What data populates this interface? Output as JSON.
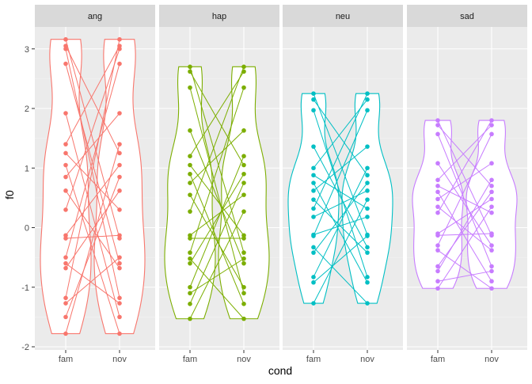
{
  "chart_data": {
    "type": "violin",
    "xlabel": "cond",
    "ylabel": "f0",
    "ylim": [
      -2.05,
      3.35
    ],
    "y_ticks": [
      -2,
      -1,
      0,
      1,
      2,
      3
    ],
    "y_tick_labels": [
      "-2",
      "-1",
      "0",
      "1",
      "2",
      "3"
    ],
    "categories": [
      "fam",
      "nov"
    ],
    "grid": true,
    "panel_background": "#ebebeb",
    "strip_background": "#d9d9d9",
    "panels": [
      {
        "name": "ang",
        "color": "#F8766D",
        "range": [
          -1.78,
          3.16
        ],
        "fam": [
          3.16,
          3.05,
          3.0,
          2.75,
          1.92,
          1.4,
          1.25,
          1.05,
          0.85,
          0.62,
          0.3,
          -0.13,
          -0.18,
          -0.5,
          -0.6,
          -0.68,
          -1.18,
          -1.27,
          -1.5,
          -1.78
        ],
        "nov": [
          3.16,
          3.05,
          3.0,
          2.75,
          1.92,
          1.4,
          1.25,
          1.05,
          0.85,
          0.62,
          0.3,
          -0.13,
          -0.18,
          -0.5,
          -0.6,
          -0.68,
          -1.18,
          -1.27,
          -1.5,
          -1.78
        ],
        "pairs": [
          [
            0,
            12
          ],
          [
            1,
            6
          ],
          [
            2,
            16
          ],
          [
            3,
            14
          ],
          [
            4,
            18
          ],
          [
            5,
            1
          ],
          [
            6,
            10
          ],
          [
            7,
            19
          ],
          [
            8,
            4
          ],
          [
            9,
            15
          ],
          [
            10,
            2
          ],
          [
            11,
            7
          ],
          [
            12,
            11
          ],
          [
            13,
            3
          ],
          [
            14,
            17
          ],
          [
            15,
            9
          ],
          [
            16,
            0
          ],
          [
            17,
            13
          ],
          [
            18,
            8
          ],
          [
            19,
            5
          ]
        ]
      },
      {
        "name": "hap",
        "color": "#7CAE00",
        "range": [
          -1.53,
          2.7
        ],
        "fam": [
          2.7,
          2.62,
          2.35,
          1.63,
          1.2,
          1.05,
          0.9,
          0.75,
          0.55,
          0.27,
          -0.13,
          -0.18,
          -0.42,
          -0.52,
          -0.6,
          -1.0,
          -1.1,
          -1.28,
          -1.53
        ],
        "nov": [
          2.7,
          2.62,
          2.35,
          1.63,
          1.2,
          1.05,
          0.9,
          0.75,
          0.55,
          0.27,
          -0.13,
          -0.18,
          -0.42,
          -0.52,
          -0.6,
          -1.0,
          -1.1,
          -1.28,
          -1.53
        ],
        "pairs": [
          [
            0,
            12
          ],
          [
            1,
            5
          ],
          [
            2,
            16
          ],
          [
            3,
            14
          ],
          [
            4,
            1
          ],
          [
            5,
            10
          ],
          [
            6,
            17
          ],
          [
            7,
            3
          ],
          [
            8,
            15
          ],
          [
            9,
            0
          ],
          [
            10,
            8
          ],
          [
            11,
            11
          ],
          [
            12,
            2
          ],
          [
            13,
            18
          ],
          [
            14,
            6
          ],
          [
            15,
            4
          ],
          [
            16,
            13
          ],
          [
            17,
            7
          ],
          [
            18,
            9
          ]
        ]
      },
      {
        "name": "neu",
        "color": "#00BFC4",
        "range": [
          -1.27,
          2.25
        ],
        "fam": [
          2.25,
          2.15,
          1.97,
          1.36,
          1.0,
          0.88,
          0.75,
          0.62,
          0.47,
          0.32,
          0.18,
          -0.12,
          -0.14,
          -0.33,
          -0.42,
          -0.83,
          -0.92,
          -1.27
        ],
        "nov": [
          2.25,
          2.15,
          1.97,
          1.36,
          1.0,
          0.88,
          0.75,
          0.62,
          0.47,
          0.32,
          0.18,
          -0.12,
          -0.14,
          -0.33,
          -0.42,
          -0.83,
          -0.92,
          -1.27
        ],
        "pairs": [
          [
            0,
            11
          ],
          [
            1,
            5
          ],
          [
            2,
            15
          ],
          [
            3,
            13
          ],
          [
            4,
            1
          ],
          [
            5,
            9
          ],
          [
            6,
            16
          ],
          [
            7,
            3
          ],
          [
            8,
            14
          ],
          [
            9,
            0
          ],
          [
            10,
            7
          ],
          [
            11,
            10
          ],
          [
            12,
            2
          ],
          [
            13,
            17
          ],
          [
            14,
            6
          ],
          [
            15,
            4
          ],
          [
            16,
            12
          ],
          [
            17,
            8
          ]
        ]
      },
      {
        "name": "sad",
        "color": "#C77CFF",
        "range": [
          -1.02,
          1.8
        ],
        "fam": [
          1.8,
          1.72,
          1.57,
          1.08,
          0.8,
          0.7,
          0.6,
          0.48,
          0.35,
          0.25,
          -0.1,
          -0.13,
          -0.3,
          -0.38,
          -0.65,
          -0.73,
          -0.9,
          -1.02
        ],
        "nov": [
          1.8,
          1.72,
          1.57,
          1.08,
          0.8,
          0.7,
          0.6,
          0.48,
          0.35,
          0.25,
          -0.1,
          -0.13,
          -0.3,
          -0.38,
          -0.65,
          -0.73,
          -0.9,
          -1.02
        ],
        "pairs": [
          [
            0,
            11
          ],
          [
            1,
            5
          ],
          [
            2,
            14
          ],
          [
            3,
            12
          ],
          [
            4,
            1
          ],
          [
            5,
            9
          ],
          [
            6,
            16
          ],
          [
            7,
            3
          ],
          [
            8,
            13
          ],
          [
            9,
            0
          ],
          [
            10,
            7
          ],
          [
            11,
            10
          ],
          [
            12,
            2
          ],
          [
            13,
            17
          ],
          [
            14,
            6
          ],
          [
            15,
            4
          ],
          [
            16,
            15
          ],
          [
            17,
            8
          ]
        ]
      }
    ]
  }
}
